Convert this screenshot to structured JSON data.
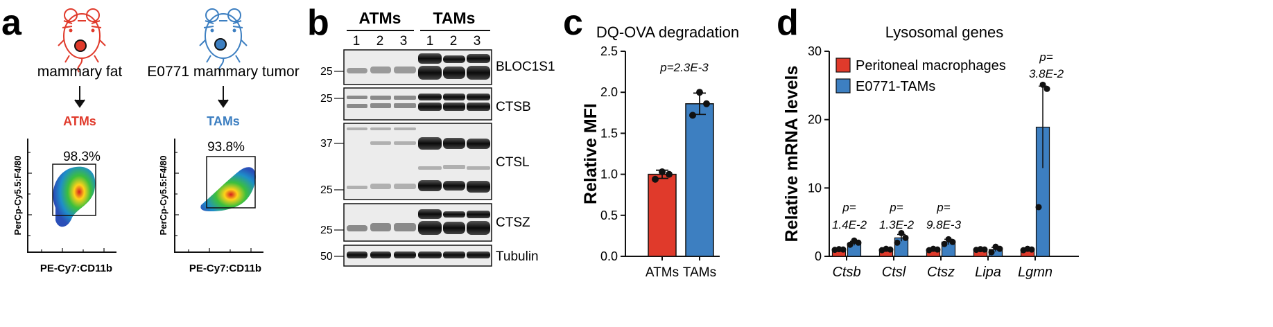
{
  "panels": {
    "a": {
      "letter": "a",
      "left": {
        "tissue": "mammary fat",
        "population": "ATMs",
        "gate_percent": "98.3%",
        "ylabel": "PerCp-Cy5.5:F4/80",
        "xlabel": "PE-Cy7:CD11b"
      },
      "right": {
        "tissue": "E0771 mammary tumor",
        "population": "TAMs",
        "gate_percent": "93.8%",
        "ylabel": "PerCp-Cy5.5:F4/80",
        "xlabel": "PE-Cy7:CD11b"
      },
      "colors": {
        "atm": "#e03a2b",
        "tam": "#3d7fc1"
      }
    },
    "b": {
      "letter": "b",
      "groups": [
        "ATMs",
        "TAMs"
      ],
      "lanes": [
        "1",
        "2",
        "3",
        "1",
        "2",
        "3"
      ],
      "blots": [
        {
          "name": "BLOC1S1",
          "markers": [
            "25"
          ]
        },
        {
          "name": "CTSB",
          "markers": [
            "25"
          ]
        },
        {
          "name": "CTSL",
          "markers": [
            "37",
            "25"
          ]
        },
        {
          "name": "CTSZ",
          "markers": [
            "25"
          ]
        },
        {
          "name": "Tubulin",
          "markers": [
            "50"
          ]
        }
      ]
    }
  },
  "chart_data": [
    {
      "panel": "c",
      "type": "bar",
      "title": "DQ-OVA degradation",
      "ylabel": "Relative MFI",
      "categories": [
        "ATMs",
        "TAMs"
      ],
      "values": [
        1.0,
        1.86
      ],
      "errors": [
        0.05,
        0.13
      ],
      "points": [
        [
          0.94,
          1.0,
          1.03
        ],
        [
          1.72,
          1.86,
          2.0
        ]
      ],
      "colors": [
        "#e03a2b",
        "#3d7fc1"
      ],
      "ylim": [
        0,
        2.5
      ],
      "yticks": [
        "0.0",
        "0.5",
        "1.0",
        "1.5",
        "2.0",
        "2.5"
      ],
      "annotations": [
        "p=2.3E-3"
      ]
    },
    {
      "panel": "d",
      "type": "bar",
      "title": "Lysosomal genes",
      "ylabel": "Relative mRNA levels",
      "categories": [
        "Ctsb",
        "Ctsl",
        "Ctsz",
        "Lipa",
        "Lgmn"
      ],
      "series": [
        {
          "name": "Peritoneal macrophages",
          "color": "#e03a2b",
          "values": [
            1.0,
            1.0,
            1.0,
            1.0,
            1.0
          ],
          "errors": [
            0.05,
            0.05,
            0.05,
            0.05,
            0.05
          ],
          "points": [
            [
              0.95,
              1.0,
              1.05
            ],
            [
              0.9,
              1.0,
              1.1
            ],
            [
              0.9,
              1.0,
              1.1
            ],
            [
              0.95,
              1.0,
              1.05
            ],
            [
              0.9,
              1.0,
              1.1
            ]
          ]
        },
        {
          "name": "E0771-TAMs",
          "color": "#3d7fc1",
          "values": [
            1.9,
            2.7,
            2.1,
            1.0,
            18.9
          ],
          "errors": [
            0.3,
            0.5,
            0.4,
            0.3,
            6.0
          ],
          "points": [
            [
              1.7,
              2.0,
              2.3
            ],
            [
              2.0,
              2.7,
              3.4
            ],
            [
              1.8,
              2.1,
              2.5
            ],
            [
              0.6,
              1.1,
              1.4
            ],
            [
              7.2,
              24.5,
              25.1
            ]
          ]
        }
      ],
      "ylim": [
        0,
        30
      ],
      "yticks": [
        "0",
        "10",
        "20",
        "30"
      ],
      "legend_position": "top-left",
      "pvalues": [
        [
          "p=",
          "1.4E-2"
        ],
        [
          "p=",
          "1.3E-2"
        ],
        [
          "p=",
          "9.8E-3"
        ],
        null,
        [
          "p=",
          "3.8E-2"
        ]
      ]
    }
  ]
}
